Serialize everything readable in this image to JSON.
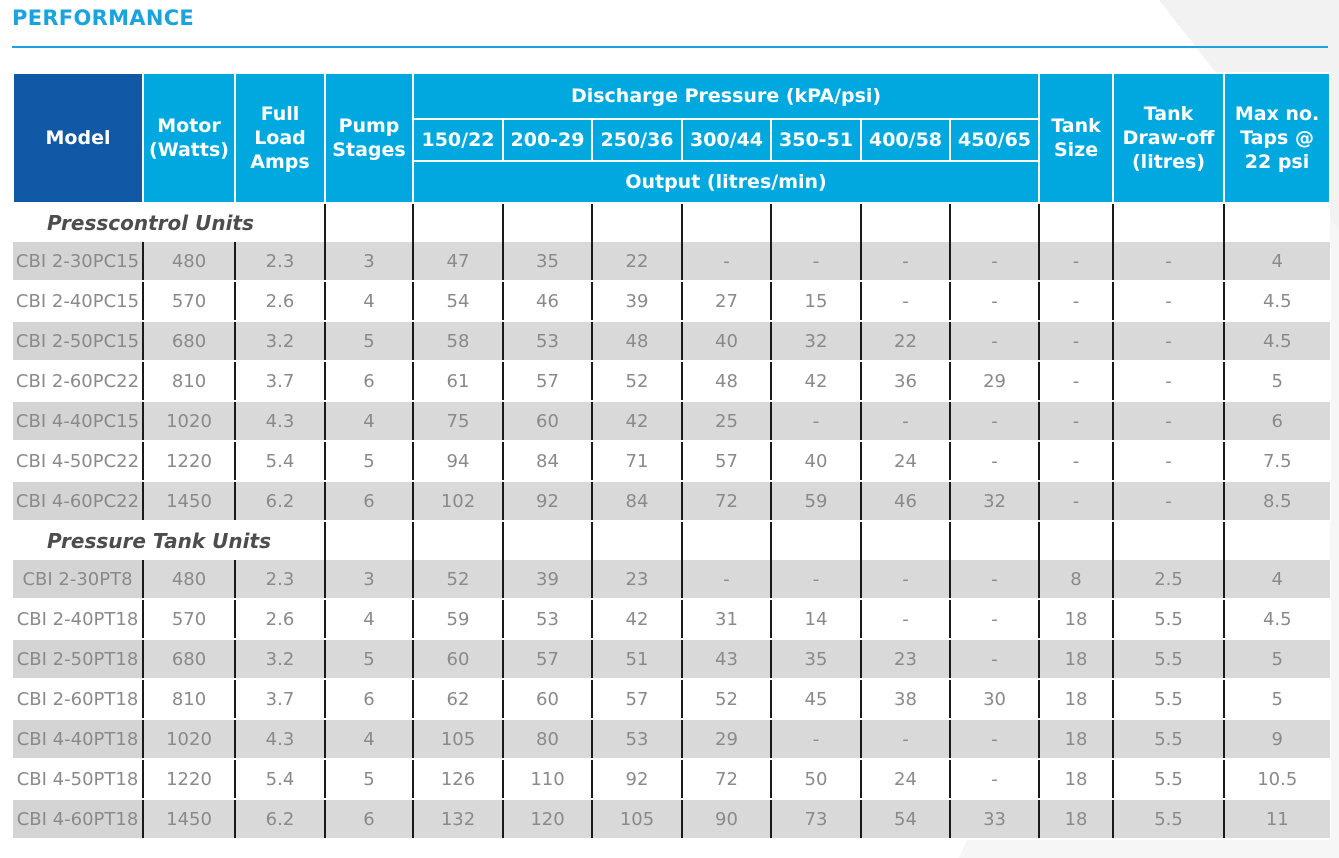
{
  "title": "PERFORMANCE",
  "headers": {
    "model": "Model",
    "motor_1": "Motor",
    "motor_2": "(Watts)",
    "amps_1": "Full",
    "amps_2": "Load",
    "amps_3": "Amps",
    "stages_1": "Pump",
    "stages_2": "Stages",
    "pressure": "Discharge Pressure (kPA/psi)",
    "pressure_cols": [
      "150/22",
      "200-29",
      "250/36",
      "300/44",
      "350-51",
      "400/58",
      "450/65"
    ],
    "output": "Output (litres/min)",
    "tank_1": "Tank",
    "tank_2": "Size",
    "drawoff_1": "Tank",
    "drawoff_2": "Draw-off",
    "drawoff_3": "(litres)",
    "taps_1": "Max no.",
    "taps_2": "Taps @",
    "taps_3": "22 psi"
  },
  "sections": [
    {
      "label": "Presscontrol Units",
      "rows": [
        [
          "CBI 2-30PC15",
          "480",
          "2.3",
          "3",
          "47",
          "35",
          "22",
          "-",
          "-",
          "-",
          "-",
          "-",
          "-",
          "4"
        ],
        [
          "CBI 2-40PC15",
          "570",
          "2.6",
          "4",
          "54",
          "46",
          "39",
          "27",
          "15",
          "-",
          "-",
          "-",
          "-",
          "4.5"
        ],
        [
          "CBI 2-50PC15",
          "680",
          "3.2",
          "5",
          "58",
          "53",
          "48",
          "40",
          "32",
          "22",
          "-",
          "-",
          "-",
          "4.5"
        ],
        [
          "CBI 2-60PC22",
          "810",
          "3.7",
          "6",
          "61",
          "57",
          "52",
          "48",
          "42",
          "36",
          "29",
          "-",
          "-",
          "5"
        ],
        [
          "CBI 4-40PC15",
          "1020",
          "4.3",
          "4",
          "75",
          "60",
          "42",
          "25",
          "-",
          "-",
          "-",
          "-",
          "-",
          "6"
        ],
        [
          "CBI 4-50PC22",
          "1220",
          "5.4",
          "5",
          "94",
          "84",
          "71",
          "57",
          "40",
          "24",
          "-",
          "-",
          "-",
          "7.5"
        ],
        [
          "CBI 4-60PC22",
          "1450",
          "6.2",
          "6",
          "102",
          "92",
          "84",
          "72",
          "59",
          "46",
          "32",
          "-",
          "-",
          "8.5"
        ]
      ]
    },
    {
      "label": "Pressure Tank Units",
      "rows": [
        [
          "CBI 2-30PT8",
          "480",
          "2.3",
          "3",
          "52",
          "39",
          "23",
          "-",
          "-",
          "-",
          "-",
          "8",
          "2.5",
          "4"
        ],
        [
          "CBI 2-40PT18",
          "570",
          "2.6",
          "4",
          "59",
          "53",
          "42",
          "31",
          "14",
          "-",
          "-",
          "18",
          "5.5",
          "4.5"
        ],
        [
          "CBI 2-50PT18",
          "680",
          "3.2",
          "5",
          "60",
          "57",
          "51",
          "43",
          "35",
          "23",
          "-",
          "18",
          "5.5",
          "5"
        ],
        [
          "CBI 2-60PT18",
          "810",
          "3.7",
          "6",
          "62",
          "60",
          "57",
          "52",
          "45",
          "38",
          "30",
          "18",
          "5.5",
          "5"
        ],
        [
          "CBI 4-40PT18",
          "1020",
          "4.3",
          "4",
          "105",
          "80",
          "53",
          "29",
          "-",
          "-",
          "-",
          "18",
          "5.5",
          "9"
        ],
        [
          "CBI 4-50PT18",
          "1220",
          "5.4",
          "5",
          "126",
          "110",
          "92",
          "72",
          "50",
          "24",
          "-",
          "18",
          "5.5",
          "10.5"
        ],
        [
          "CBI 4-60PT18",
          "1450",
          "6.2",
          "6",
          "132",
          "120",
          "105",
          "90",
          "73",
          "54",
          "33",
          "18",
          "5.5",
          "11"
        ]
      ]
    }
  ],
  "colors": {
    "header_blue": "#00a8e0",
    "model_header": "#1159a6",
    "title_blue": "#1aa3dc",
    "stripe": "#d9d9da"
  }
}
